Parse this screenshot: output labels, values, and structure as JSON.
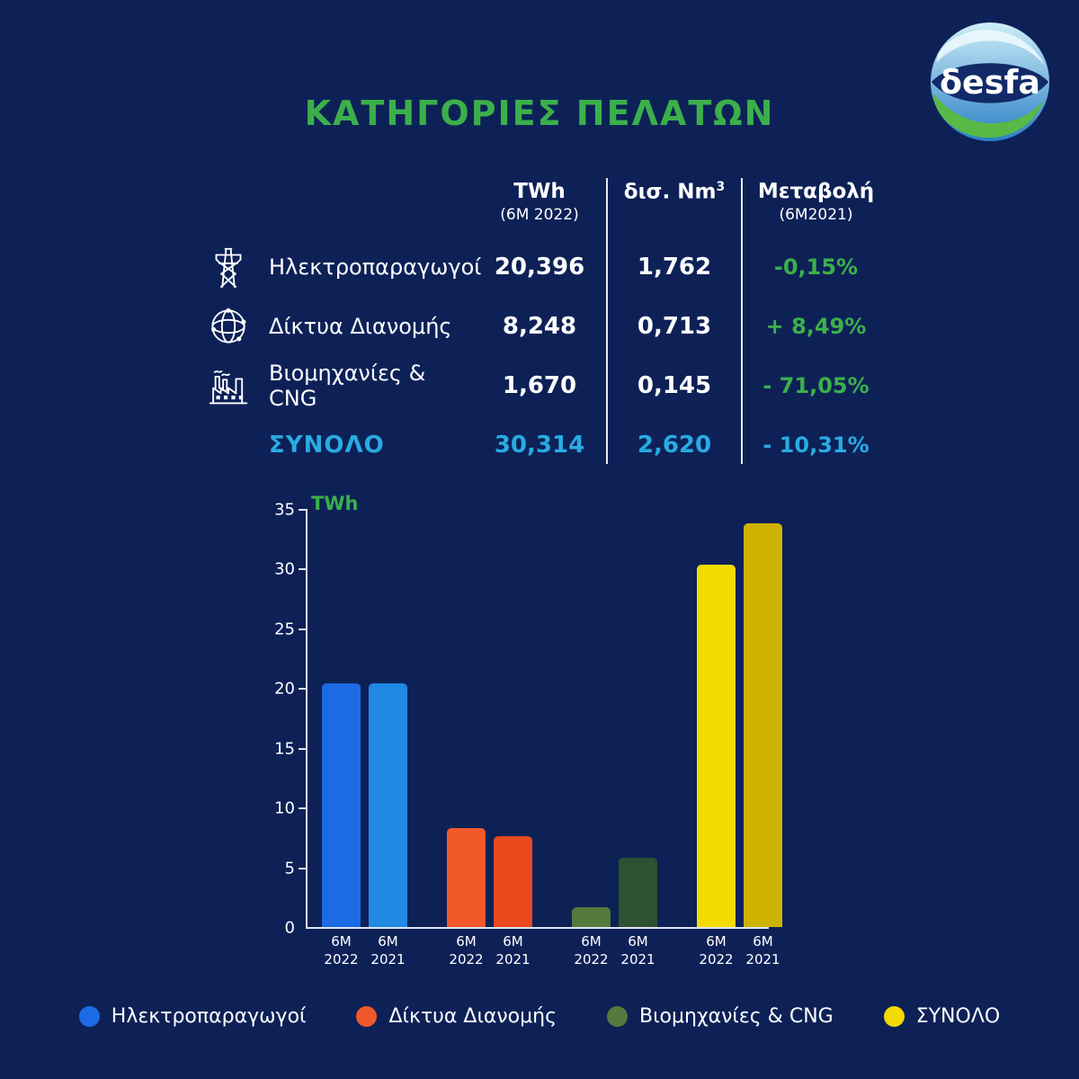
{
  "page": {
    "title": "ΚΑΤΗΓΟΡΙΕΣ ΠΕΛΑΤΩΝ",
    "background": "#0d2157",
    "accent_green": "#3bb04a",
    "accent_blue": "#29abe2"
  },
  "logo": {
    "text": "δesfa"
  },
  "table": {
    "columns": [
      {
        "line1": "TWh",
        "line2": "(6M 2022)"
      },
      {
        "line1": "δισ. Nm",
        "sup": "3"
      },
      {
        "line1": "Μεταβολή",
        "line2": "(6M2021)"
      }
    ],
    "rows": [
      {
        "icon": "pylon-icon",
        "label": "Ηλεκτροπαραγωγοί",
        "twh": "20,396",
        "nm3": "1,762",
        "change": "-0,15%"
      },
      {
        "icon": "globe-icon",
        "label": "Δίκτυα Διανομής",
        "twh": "8,248",
        "nm3": "0,713",
        "change": "+ 8,49%"
      },
      {
        "icon": "factory-icon",
        "label": "Βιομηχανίες & CNG",
        "twh": "1,670",
        "nm3": "0,145",
        "change": "- 71,05%"
      },
      {
        "icon": "",
        "label": "ΣΥΝΟΛΟ",
        "twh": "30,314",
        "nm3": "2,620",
        "change": "- 10,31%",
        "highlight": true
      }
    ]
  },
  "chart_data": {
    "type": "bar",
    "title": "",
    "xlabel": "",
    "ylabel": "TWh",
    "ylim": [
      0,
      35
    ],
    "yticks": [
      0,
      5,
      10,
      15,
      20,
      25,
      30,
      35
    ],
    "grid": false,
    "legend_position": "bottom",
    "categories": [
      "Ηλεκτροπαραγωγοί",
      "Δίκτυα Διανομής",
      "Βιομηχανίες & CNG",
      "ΣΥΝΟΛΟ"
    ],
    "series": [
      {
        "name": "6M 2022",
        "values": [
          20.396,
          8.248,
          1.67,
          30.314
        ],
        "colors": [
          "#1c6be4",
          "#f1592a",
          "#55793e",
          "#f3da00"
        ]
      },
      {
        "name": "6M 2021",
        "values": [
          20.43,
          7.6,
          5.77,
          33.8
        ],
        "colors": [
          "#2089e4",
          "#e8491d",
          "#2c5231",
          "#cdb300"
        ]
      }
    ]
  },
  "legend": {
    "items": [
      {
        "label": "Ηλεκτροπαραγωγοί",
        "color": "#1c6be4"
      },
      {
        "label": "Δίκτυα Διανομής",
        "color": "#f1592a"
      },
      {
        "label": "Βιομηχανίες & CNG",
        "color": "#55793e"
      },
      {
        "label": "ΣΥΝΟΛΟ",
        "color": "#f3da00"
      }
    ]
  }
}
